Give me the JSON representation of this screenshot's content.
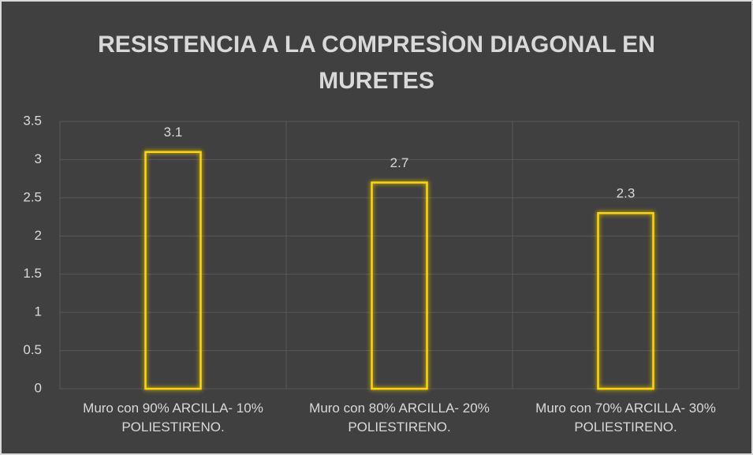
{
  "chart_data": {
    "type": "bar",
    "title": "RESISTENCIA A LA COMPRESÌON DIAGONAL EN MURETES",
    "categories": [
      "Muro con 90% ARCILLA- 10% POLIESTIRENO.",
      "Muro con 80% ARCILLA- 20% POLIESTIRENO.",
      "Muro con 70% ARCILLA- 30% POLIESTIRENO."
    ],
    "values": [
      3.1,
      2.7,
      2.3
    ],
    "color": "#ffd700",
    "ylim": [
      0,
      3.5
    ],
    "yticks": [
      0,
      0.5,
      1,
      1.5,
      2,
      2.5,
      3,
      3.5
    ],
    "grid": true
  }
}
